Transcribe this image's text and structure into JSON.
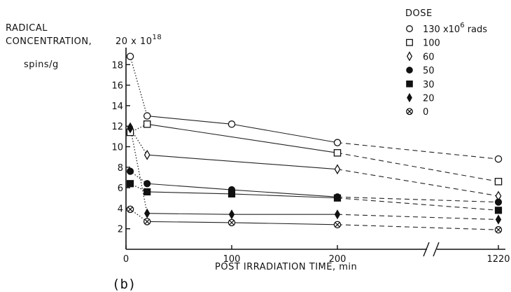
{
  "chart_data": {
    "type": "scatter",
    "ylabel_lines": [
      "RADICAL",
      "CONCENTRATION,"
    ],
    "y_unit_label": "spins/g",
    "y_scale_label": "20 x 10",
    "y_scale_exp": "18",
    "xlabel": "POST IRRADIATION TIME, min",
    "panel_label": "(b)",
    "legend_title": "DOSE",
    "first_series_suffix": " x10",
    "first_series_exp": "6",
    "first_series_unit": " rads",
    "x_tick_labels": [
      "0",
      "100",
      "200",
      "1220"
    ],
    "y_tick_labels": [
      "2",
      "4",
      "6",
      "8",
      "10",
      "12",
      "14",
      "16",
      "18"
    ],
    "y_ticks": [
      2,
      4,
      6,
      8,
      10,
      12,
      14,
      16,
      18
    ],
    "xlim": [
      0,
      1220
    ],
    "ylim": [
      0,
      20
    ],
    "axis_break": "between 200 and 1220",
    "series": [
      {
        "name": "130",
        "marker": "circle-open",
        "x": [
          4,
          20,
          100,
          200,
          1220
        ],
        "y": [
          18.8,
          13.0,
          12.2,
          10.4,
          8.8
        ]
      },
      {
        "name": "100",
        "marker": "square-open",
        "x": [
          4,
          20,
          200,
          1220
        ],
        "y": [
          11.4,
          12.2,
          9.4,
          6.6
        ]
      },
      {
        "name": "60",
        "marker": "diamond-open",
        "x": [
          4,
          20,
          200,
          1220
        ],
        "y": [
          11.8,
          9.2,
          7.8,
          5.2
        ]
      },
      {
        "name": "50",
        "marker": "circle-filled",
        "x": [
          4,
          20,
          100,
          200,
          1220
        ],
        "y": [
          7.6,
          6.4,
          5.8,
          5.1,
          4.6
        ]
      },
      {
        "name": "30",
        "marker": "square-filled",
        "x": [
          4,
          20,
          100,
          200,
          1220
        ],
        "y": [
          6.4,
          5.6,
          5.4,
          5.0,
          3.8
        ]
      },
      {
        "name": "20",
        "marker": "diamond-filled",
        "x": [
          4,
          20,
          100,
          200,
          1220
        ],
        "y": [
          11.9,
          3.5,
          3.4,
          3.4,
          2.9
        ]
      },
      {
        "name": "0",
        "marker": "circle-cross",
        "x": [
          4,
          20,
          100,
          200,
          1220
        ],
        "y": [
          3.9,
          2.7,
          2.6,
          2.4,
          1.9
        ]
      }
    ]
  }
}
